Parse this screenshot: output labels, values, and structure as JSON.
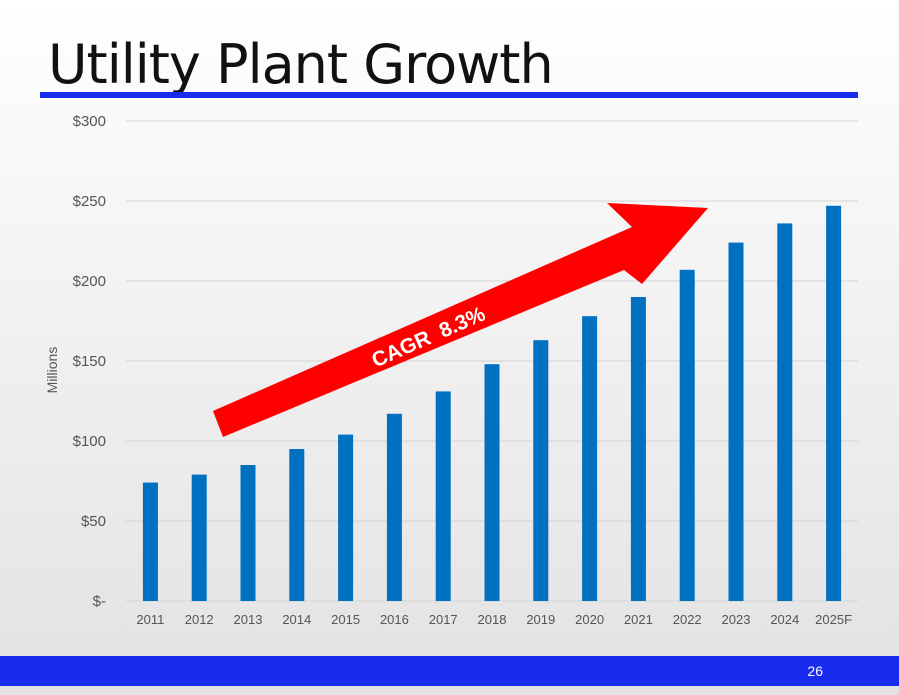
{
  "slide": {
    "title": "Utility Plant Growth",
    "page_number": "26"
  },
  "colors": {
    "bar": "#0070c0",
    "arrow": "#ff0000",
    "accent": "#1a2bf0"
  },
  "chart_data": {
    "type": "bar",
    "title": "",
    "xlabel": "",
    "ylabel": "Millions",
    "categories": [
      "2011",
      "2012",
      "2013",
      "2014",
      "2015",
      "2016",
      "2017",
      "2018",
      "2019",
      "2020",
      "2021",
      "2022",
      "2023",
      "2024",
      "2025F"
    ],
    "values": [
      74,
      79,
      85,
      95,
      104,
      117,
      131,
      148,
      163,
      178,
      190,
      207,
      224,
      236,
      247
    ],
    "ylim": [
      0,
      300
    ],
    "yticks": [
      0,
      50,
      100,
      150,
      200,
      250,
      300
    ],
    "ytick_labels": [
      "$-",
      "$50",
      "$100",
      "$150",
      "$200",
      "$250",
      "$300"
    ],
    "grid": true,
    "annotation": "CAGR  8.3%"
  }
}
